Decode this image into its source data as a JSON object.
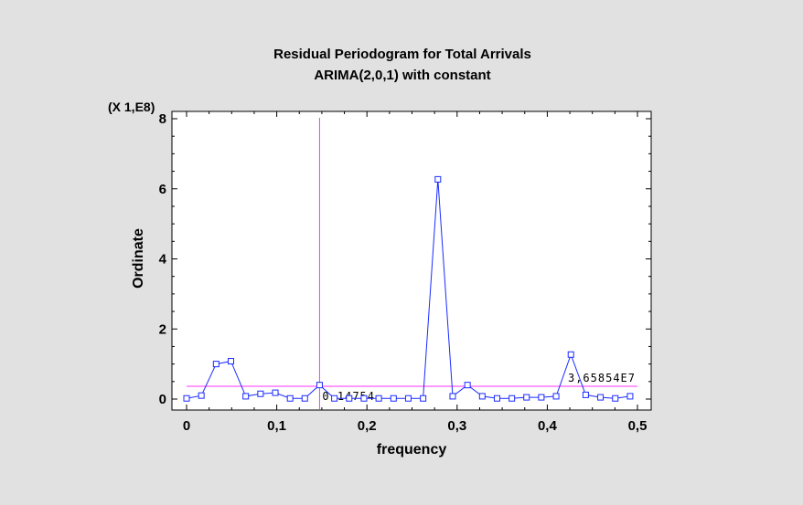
{
  "chart_data": {
    "type": "line",
    "title": "Residual Periodogram for Total Arrivals",
    "subtitle": "ARIMA(2,0,1) with constant",
    "xlabel": "frequency",
    "ylabel": "Ordinate",
    "y_multiplier_label": "(X 1,E8)",
    "xlim": [
      0,
      0.5
    ],
    "ylim": [
      0,
      8
    ],
    "x_ticks": [
      "0",
      "0,1",
      "0,2",
      "0,3",
      "0,4",
      "0,5"
    ],
    "y_ticks": [
      "0",
      "2",
      "4",
      "6",
      "8"
    ],
    "series": [
      {
        "color": "#1a2bff",
        "marker": "square",
        "x": [
          0.0,
          0.0164,
          0.0328,
          0.0492,
          0.0656,
          0.082,
          0.0984,
          0.1148,
          0.1311,
          0.1475,
          0.1639,
          0.1803,
          0.1967,
          0.2131,
          0.2295,
          0.2459,
          0.2623,
          0.2787,
          0.2951,
          0.3115,
          0.3279,
          0.3443,
          0.3607,
          0.377,
          0.3934,
          0.4098,
          0.4262,
          0.4426,
          0.459,
          0.4754,
          0.4918
        ],
        "y": [
          0.02,
          0.1,
          1.0,
          1.08,
          0.08,
          0.15,
          0.18,
          0.02,
          0.02,
          0.4,
          0.02,
          0.02,
          0.02,
          0.02,
          0.02,
          0.02,
          0.02,
          6.27,
          0.08,
          0.4,
          0.08,
          0.02,
          0.02,
          0.05,
          0.05,
          0.08,
          1.27,
          0.12,
          0.05,
          0.02,
          0.08
        ]
      }
    ],
    "reference_lines": {
      "color": "#ff33ff",
      "vertical": {
        "x": 0.1475,
        "label": "0,14754"
      },
      "horizontal": {
        "y": 0.365,
        "label": "3,65854E7"
      }
    },
    "grid": false,
    "legend": "none"
  }
}
